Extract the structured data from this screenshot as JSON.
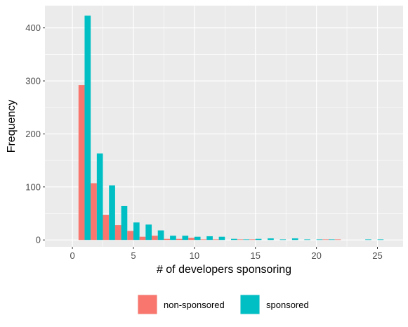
{
  "chart_data": {
    "type": "bar",
    "title": "",
    "xlabel": "# of developers sponsoring",
    "ylabel": "Frequency",
    "x": [
      1,
      2,
      3,
      4,
      5,
      6,
      7,
      8,
      9,
      10,
      11,
      12,
      13,
      14,
      15,
      16,
      17,
      18,
      19,
      20,
      21,
      22,
      23,
      24,
      25
    ],
    "series": [
      {
        "name": "non-sponsored",
        "color": "#F8766D",
        "values": [
          292,
          107,
          47,
          28,
          17,
          6,
          8,
          2,
          2,
          4,
          1,
          1,
          0,
          1,
          1,
          0,
          0,
          0,
          0,
          0,
          1,
          1,
          0,
          0,
          0
        ]
      },
      {
        "name": "sponsored",
        "color": "#00BFC4",
        "values": [
          423,
          163,
          103,
          64,
          33,
          29,
          18,
          8,
          8,
          6,
          7,
          6,
          2,
          1,
          2,
          3,
          1,
          3,
          1,
          1,
          1,
          0,
          0,
          1,
          1
        ]
      }
    ],
    "xlim": [
      -2.25,
      27.1
    ],
    "ylim": [
      -13,
      442
    ],
    "xticks": [
      0,
      5,
      10,
      15,
      20,
      25
    ],
    "yticks": [
      0,
      100,
      200,
      300,
      400
    ],
    "grid": true,
    "legend_position": "bottom"
  }
}
